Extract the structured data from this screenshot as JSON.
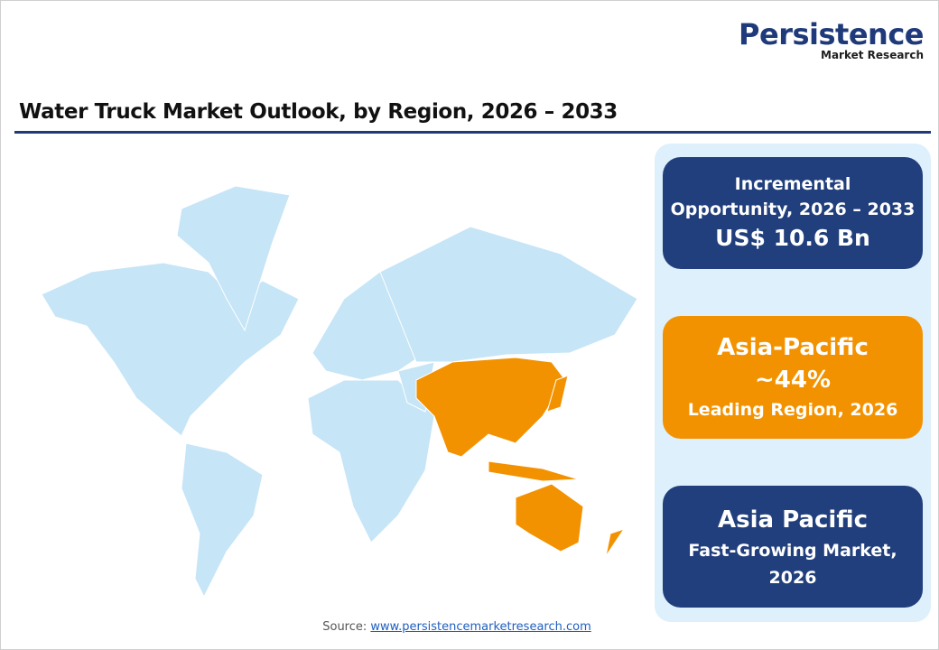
{
  "logo": {
    "name": "Persistence",
    "tagline": "Market Research"
  },
  "title": "Water Truck Market Outlook, by Region, 2026 – 2033",
  "cards": [
    {
      "lines": [
        "Incremental",
        "Opportunity, 2026 – 2033",
        "US$ 10.6 Bn"
      ]
    },
    {
      "lines": [
        "Asia-Pacific",
        "~44%",
        "Leading Region, 2026"
      ]
    },
    {
      "lines": [
        "Asia Pacific",
        "Fast-Growing Market,",
        "2026"
      ]
    }
  ],
  "source": {
    "label": "Source:",
    "url": "www.persistencemarketresearch.com"
  }
}
